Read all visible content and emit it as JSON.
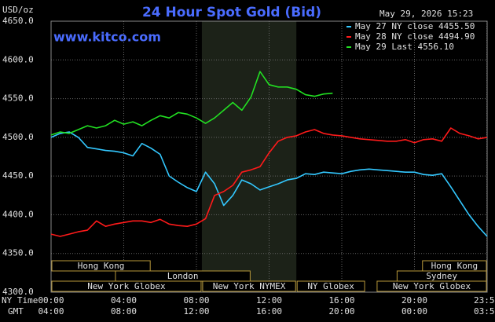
{
  "chart_data": {
    "type": "line",
    "title": "24 Hour Spot Gold (Bid)",
    "site": "www.kitco.com",
    "timestamp": "May 29, 2026 15:23",
    "unit": "USD/oz",
    "xlabel": "NY Time",
    "x2label": "GMT",
    "xlim": [
      0,
      24
    ],
    "ylim": [
      4300,
      4650
    ],
    "yticks": [
      {
        "value": 4300,
        "label": "4300.0"
      },
      {
        "value": 4350,
        "label": "4350.0"
      },
      {
        "value": 4400,
        "label": "4400.0"
      },
      {
        "value": 4450,
        "label": "4450.0"
      },
      {
        "value": 4500,
        "label": "4500.0"
      },
      {
        "value": 4550,
        "label": "4550.0"
      },
      {
        "value": 4600,
        "label": "4600.0"
      },
      {
        "value": 4650,
        "label": "4650.0"
      }
    ],
    "xticks": [
      {
        "value": 0,
        "label": "00:00"
      },
      {
        "value": 4,
        "label": "04:00"
      },
      {
        "value": 8,
        "label": "08:00"
      },
      {
        "value": 12,
        "label": "12:00"
      },
      {
        "value": 16,
        "label": "16:00"
      },
      {
        "value": 20,
        "label": "20:00"
      },
      {
        "value": 23.983,
        "label": "23:59"
      }
    ],
    "x2ticks": [
      "04:00",
      "08:00",
      "12:00",
      "16:00",
      "20:00",
      "00:00",
      "03:59"
    ],
    "grid": true,
    "x": [
      0,
      0.5,
      1,
      1.5,
      2,
      2.5,
      3,
      3.5,
      4,
      4.5,
      5,
      5.5,
      6,
      6.5,
      7,
      7.5,
      8,
      8.5,
      9,
      9.5,
      10,
      10.5,
      11,
      11.5,
      12,
      12.5,
      13,
      13.5,
      14,
      14.5,
      15,
      15.5,
      16,
      16.5,
      17,
      17.5,
      18,
      18.5,
      19,
      19.5,
      20,
      20.5,
      21,
      21.5,
      22,
      22.5,
      23,
      23.5,
      24
    ],
    "series": [
      {
        "name": "May 27 NY close 4455.50",
        "color": "#33c8ff",
        "values": [
          4500,
          4505,
          4507,
          4500,
          4487,
          4485,
          4483,
          4482,
          4480,
          4476,
          4492,
          4486,
          4478,
          4450,
          4442,
          4435,
          4430,
          4455,
          4440,
          4412,
          4425,
          4445,
          4440,
          4432,
          4436,
          4440,
          4445,
          4447,
          4453,
          4452,
          4455,
          4454,
          4453,
          4456,
          4458,
          4459,
          4458,
          4457,
          4456,
          4455,
          4455,
          4452,
          4451,
          4453,
          4436,
          4418,
          4400,
          4385,
          4372
        ]
      },
      {
        "name": "May 28 NY close 4494.90",
        "color": "#ff1a1a",
        "values": [
          4375,
          4372,
          4375,
          4378,
          4380,
          4392,
          4385,
          4388,
          4390,
          4392,
          4392,
          4390,
          4394,
          4388,
          4386,
          4385,
          4388,
          4395,
          4425,
          4430,
          4438,
          4455,
          4458,
          4462,
          4480,
          4495,
          4500,
          4502,
          4507,
          4510,
          4505,
          4503,
          4502,
          4500,
          4498,
          4497,
          4496,
          4495,
          4495,
          4497,
          4493,
          4497,
          4498,
          4495,
          4512,
          4505,
          4502,
          4498,
          4500
        ]
      },
      {
        "name": "May 29 Last 4556.10",
        "color": "#22e022",
        "values": [
          4503,
          4507,
          4505,
          4510,
          4515,
          4512,
          4515,
          4522,
          4517,
          4520,
          4515,
          4522,
          4528,
          4525,
          4532,
          4530,
          4525,
          4518,
          4525,
          4535,
          4545,
          4535,
          4552,
          4585,
          4568,
          4565,
          4565,
          4562,
          4555,
          4553,
          4556,
          4557,
          null,
          null,
          null,
          null,
          null,
          null,
          null,
          null,
          null,
          null,
          null,
          null,
          null,
          null,
          null,
          null,
          null
        ]
      }
    ],
    "sessions": [
      {
        "label": "Hong Kong",
        "start": 0,
        "end": 5.5
      },
      {
        "label": "London",
        "start": 3.5,
        "end": 11
      },
      {
        "label": "New York Globex",
        "start": 0,
        "end": 8.3
      },
      {
        "label": "New York NYMEX",
        "start": 8.3,
        "end": 13.5
      },
      {
        "label": "NY Globex",
        "start": 13.5,
        "end": 17.3
      },
      {
        "label": "Hong Kong",
        "start": 20.4,
        "end": 24
      },
      {
        "label": "Sydney",
        "start": 19,
        "end": 24
      },
      {
        "label": "New York Globex",
        "start": 17.9,
        "end": 24
      }
    ]
  }
}
